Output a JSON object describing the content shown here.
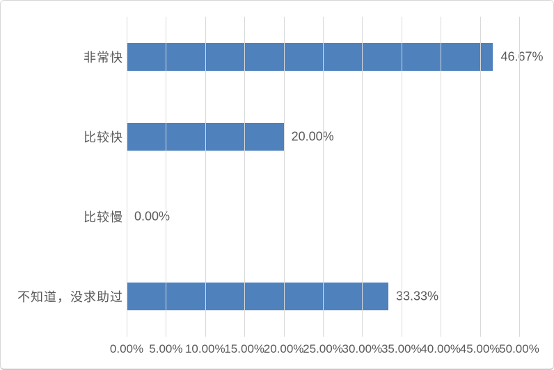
{
  "chart_data": {
    "type": "bar",
    "orientation": "horizontal",
    "title": "",
    "xlabel": "",
    "ylabel": "",
    "categories": [
      "非常快",
      "比较快",
      "比较慢",
      "不知道，没求助过"
    ],
    "values": [
      46.67,
      20.0,
      0.0,
      33.33
    ],
    "data_labels": [
      "46.67%",
      "20.00%",
      "0.00%",
      "33.33%"
    ],
    "x_ticks": [
      "0.00%",
      "5.00%",
      "10.00%",
      "15.00%",
      "20.00%",
      "25.00%",
      "30.00%",
      "35.00%",
      "40.00%",
      "45.00%",
      "50.00%"
    ],
    "xlim": [
      0,
      50
    ],
    "grid": true,
    "legend": false,
    "colors": {
      "bar": "#4f81bd",
      "gridline": "#d9d9d9",
      "text": "#595959",
      "background": "#ffffff",
      "border": "#d7d7d7"
    }
  }
}
